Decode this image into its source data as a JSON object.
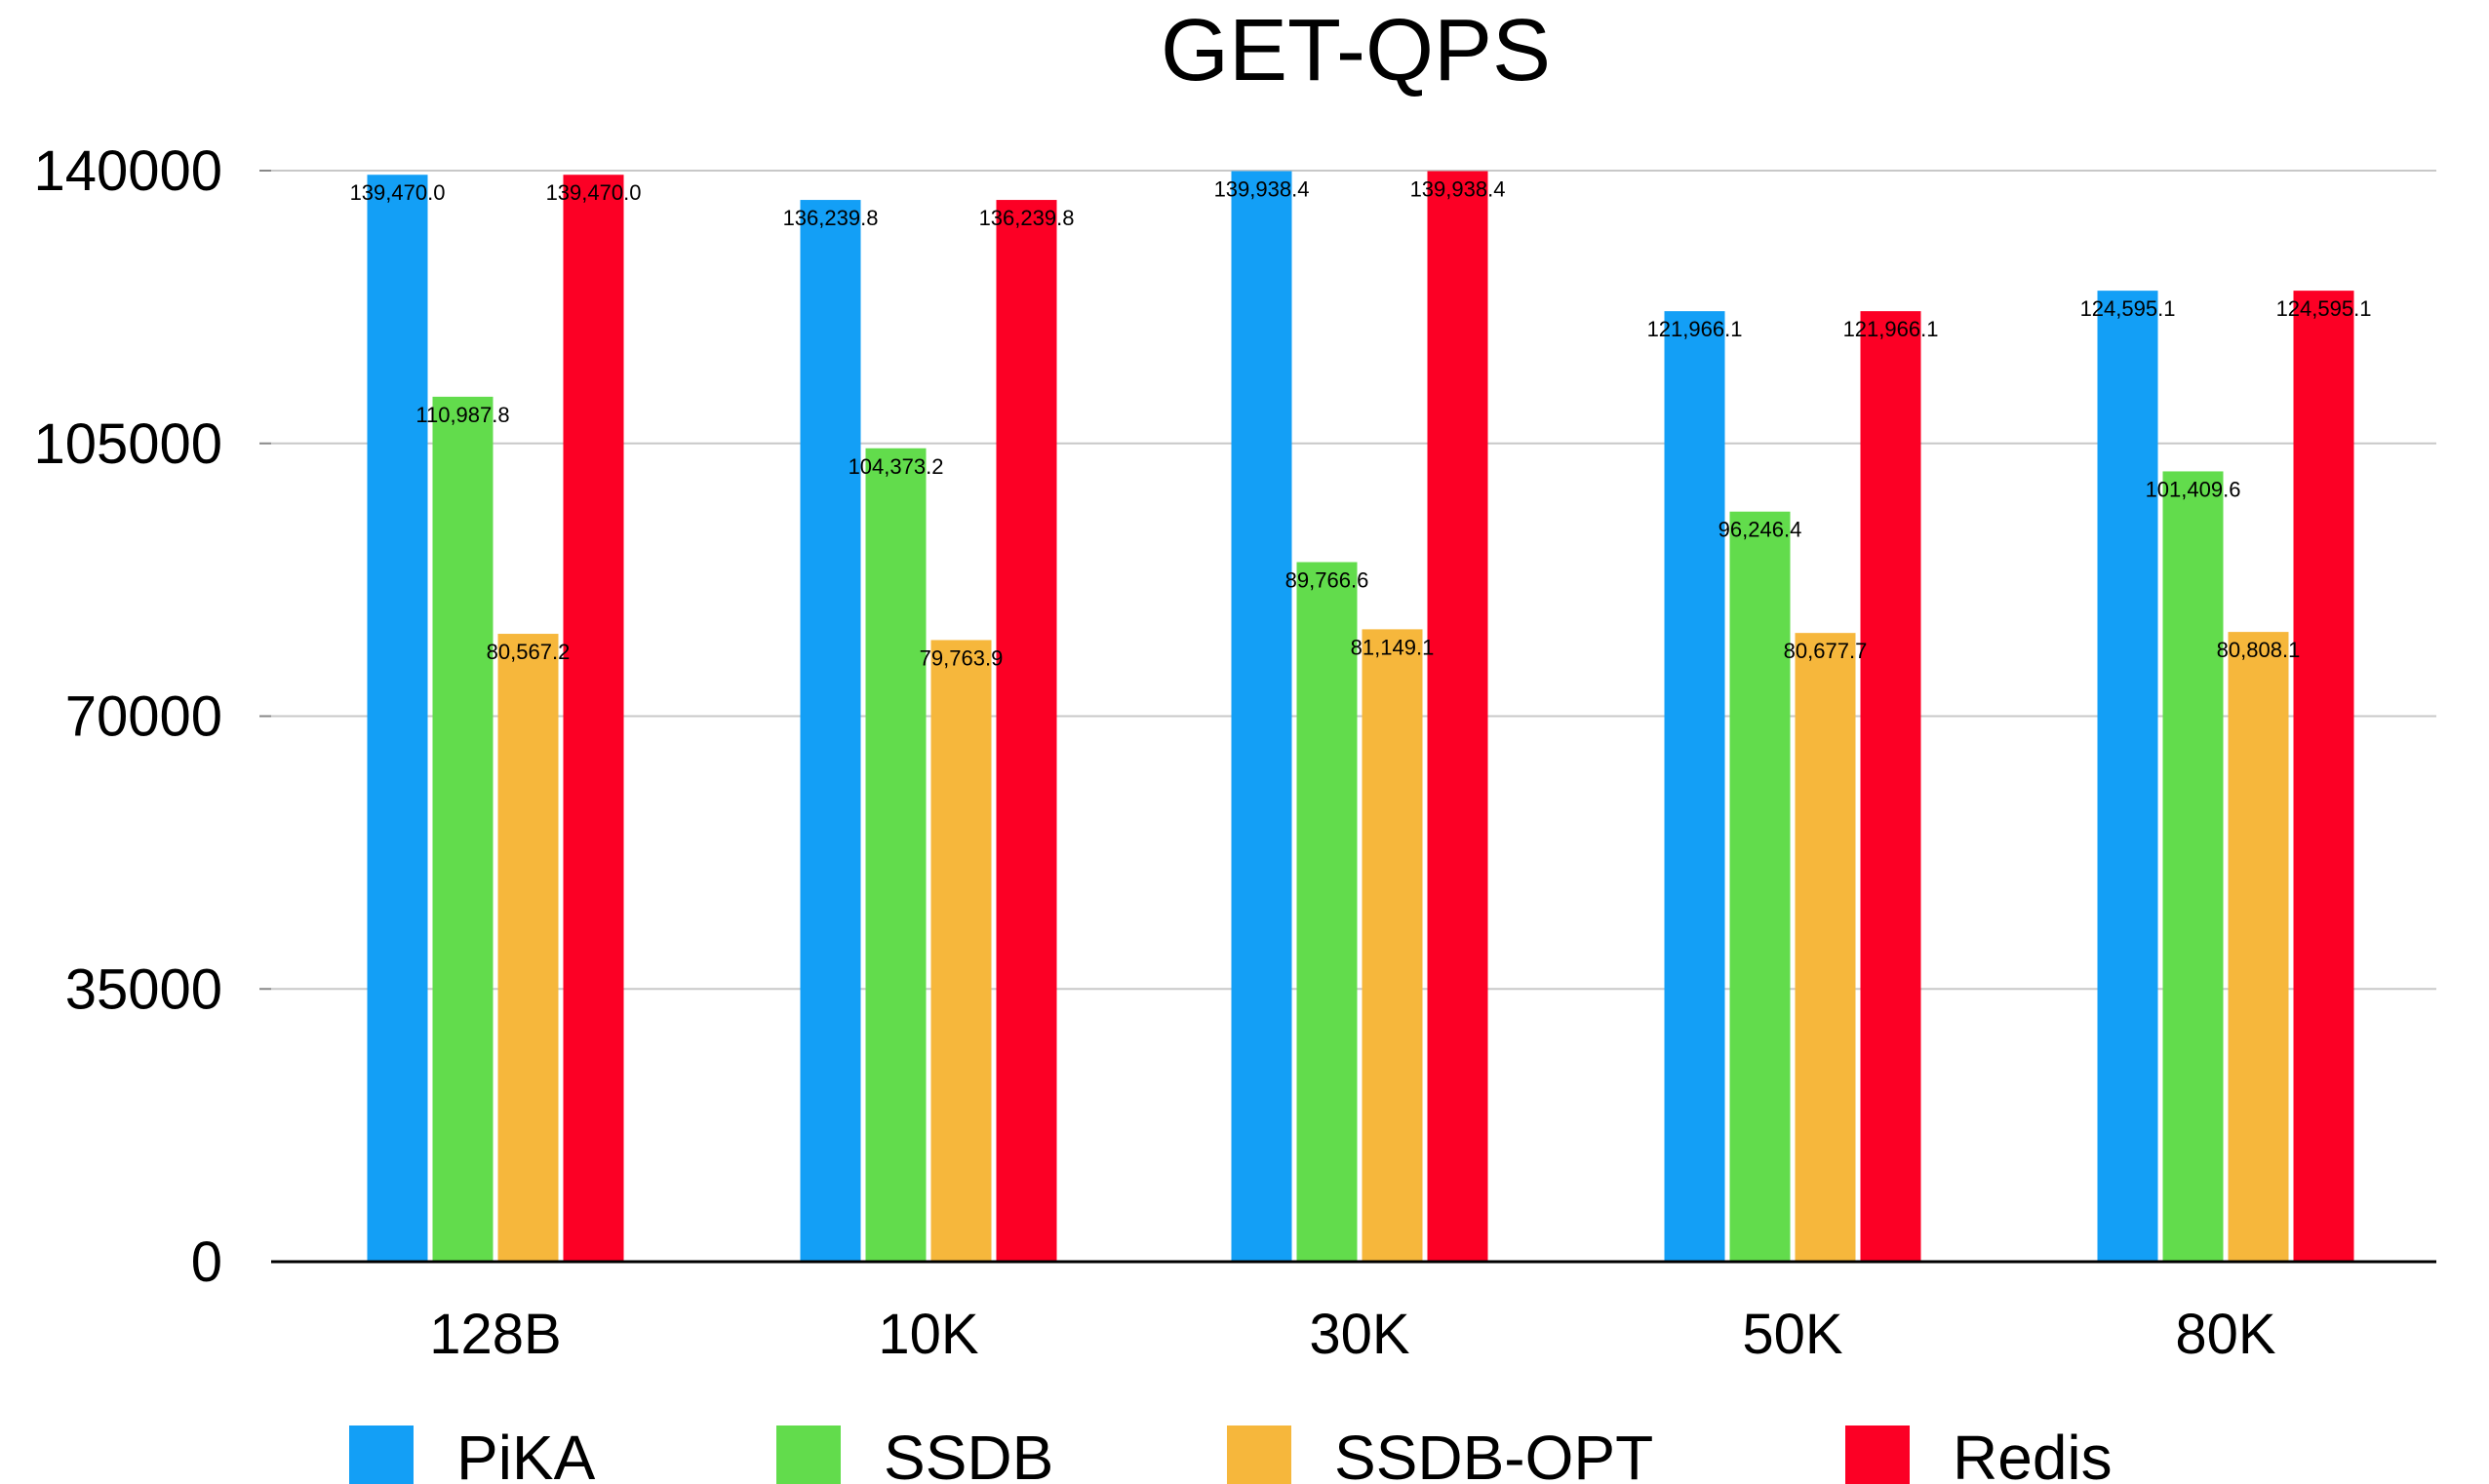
{
  "chart_data": {
    "type": "bar",
    "title": "GET-QPS",
    "xlabel": "",
    "ylabel": "",
    "categories": [
      "128B",
      "10K",
      "30K",
      "50K",
      "80K"
    ],
    "ylim": [
      0,
      140000
    ],
    "yticks": [
      0,
      35000,
      70000,
      105000,
      140000
    ],
    "grid": true,
    "legend_position": "bottom",
    "series": [
      {
        "name": "PiKA",
        "color": "#139ff6",
        "values": [
          139470.0,
          136239.8,
          139938.4,
          121966.1,
          124595.1
        ],
        "labels": [
          "139,470.0",
          "136,239.8",
          "139,938.4",
          "121,966.1",
          "124,595.1"
        ]
      },
      {
        "name": "SSDB",
        "color": "#62dc4c",
        "values": [
          110987.8,
          104373.2,
          89766.6,
          96246.4,
          101409.6
        ],
        "labels": [
          "110,987.8",
          "104,373.2",
          "89,766.6",
          "96,246.4",
          "101,409.6"
        ]
      },
      {
        "name": "SSDB-OPT",
        "color": "#f6b73c",
        "values": [
          80567.2,
          79763.9,
          81149.1,
          80677.7,
          80808.1
        ],
        "labels": [
          "80,567.2",
          "79,763.9",
          "81,149.1",
          "80,677.7",
          "80,808.1"
        ]
      },
      {
        "name": "Redis",
        "color": "#fc0025",
        "values": [
          139470.0,
          136239.8,
          139938.4,
          121966.1,
          124595.1
        ],
        "labels": [
          "139,470.0",
          "136,239.8",
          "139,938.4",
          "121,966.1",
          "124,595.1"
        ]
      }
    ]
  }
}
